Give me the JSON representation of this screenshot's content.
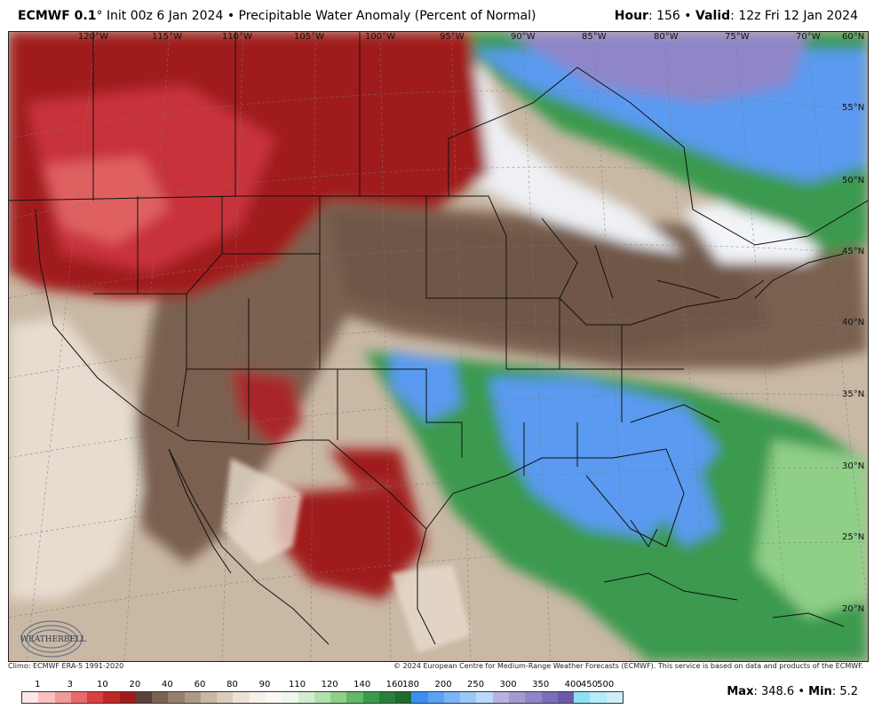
{
  "header": {
    "model": "ECMWF 0.1",
    "degree": "°",
    "init": "Init 00z 6 Jan 2024",
    "bullet": "•",
    "product": "Precipitable Water Anomaly (Percent of Normal)",
    "hour_label": "Hour",
    "hour_value": ": 156",
    "valid_label": "Valid",
    "valid_value": ": 12z Fri 12 Jan 2024"
  },
  "map": {
    "longitudes": [
      "120°W",
      "115°W",
      "110°W",
      "105°W",
      "100°W",
      "95°W",
      "90°W",
      "85°W",
      "80°W",
      "75°W",
      "70°W"
    ],
    "latitudes": [
      "60°N",
      "55°N",
      "50°N",
      "45°N",
      "40°N",
      "35°N",
      "30°N",
      "25°N",
      "20°N"
    ],
    "logo_text": "WEATHERBELL",
    "colors": {
      "very_dry": "#a01e1e",
      "dry": "#c8303a",
      "brown": "#7a6150",
      "tan": "#c4ae96",
      "normal": "#f2f4f8",
      "green": "#3a9a4e",
      "blue": "#5a9af0",
      "purple": "#8f86c8"
    }
  },
  "footer": {
    "climo": "Climo: ECMWF ERA-5 1991-2020",
    "copyright": "© 2024 European Centre for Medium-Range Weather Forecasts (ECMWF). This service is based on data and products of the ECMWF."
  },
  "legend": {
    "labels": [
      "1",
      "3",
      "10",
      "20",
      "40",
      "60",
      "80",
      "90",
      "110",
      "120",
      "140",
      "160",
      "180",
      "200",
      "250",
      "300",
      "350",
      "400",
      "450",
      "500"
    ],
    "colors": [
      "#fde6e6",
      "#f8c0c0",
      "#f09a9a",
      "#e86b6b",
      "#d94040",
      "#c02828",
      "#9e1b1b",
      "#5a4038",
      "#7a6150",
      "#94806e",
      "#ad9a86",
      "#c8b7a3",
      "#dccdbb",
      "#ece2d4",
      "#f7f1e8",
      "#fbf9f4",
      "#eef6ee",
      "#d2ecd2",
      "#b4e0b0",
      "#8fcf88",
      "#62b864",
      "#3a9a4e",
      "#2a7e3c",
      "#1f6a30",
      "#3c8ef0",
      "#5aa2f4",
      "#7ab6f6",
      "#9cc8f8",
      "#bcd8fa",
      "#b8b2dc",
      "#a39ad0",
      "#8f86c8",
      "#7a6fb8",
      "#6a5aa8",
      "#90e0f4",
      "#b4ecf8",
      "#cdeef8"
    ],
    "max_label": "Max",
    "max_value": ": 348.6",
    "min_label": "Min",
    "min_value": ": 5.2",
    "bullet": "•"
  }
}
